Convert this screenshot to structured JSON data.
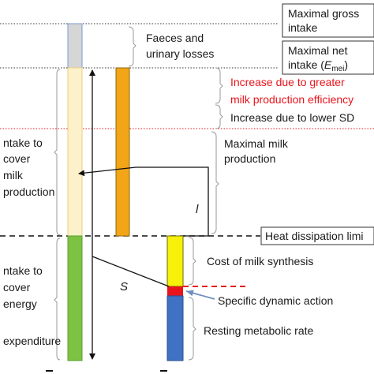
{
  "labels": {
    "maximal_gross_line1": "Maximal gross",
    "maximal_gross_line2": "intake",
    "maximal_net_line1": "Maximal net",
    "maximal_net_line2_prefix": "intake (",
    "maximal_net_symbol": "E",
    "maximal_net_subscript": "mei",
    "maximal_net_suffix": ")",
    "faeces_line1": "Faeces and",
    "faeces_line2": "urinary losses",
    "increase_efficiency_line1": "Increase due to greater",
    "increase_efficiency_line2": "milk production efficiency",
    "increase_lower_sd": "Increase due to lower SD",
    "intake_milk_line1": "ntake to",
    "intake_milk_line2": "cover",
    "intake_milk_line3": "milk",
    "intake_milk_line4": "production",
    "maximal_milk_line1": "Maximal milk",
    "maximal_milk_line2": "production",
    "heat_dissipation": "Heat dissipation limi",
    "cost_milk_synthesis": "Cost of milk synthesis",
    "intake_energy_line1": "ntake to",
    "intake_energy_line2": "cover",
    "intake_energy_line3": "energy",
    "intake_energy_line4": "expenditure",
    "specific_dynamic_action": "Specific dynamic action",
    "resting_metabolic_rate": "Resting metabolic rate",
    "letter_l": "l",
    "letter_s": "S"
  },
  "colors": {
    "faeces_bar": "#d6d6d6",
    "milk_intake_bar": "#fdf1cc",
    "energy_intake_bar": "#7dc243",
    "milk_production_bar": "#f2a516",
    "milk_synthesis_bar": "#f7f008",
    "sda_bar": "#e8141c",
    "rmr_bar": "#3f72c4",
    "red_accent": "#e8141c",
    "arrow_blue": "#6f8fbf"
  }
}
